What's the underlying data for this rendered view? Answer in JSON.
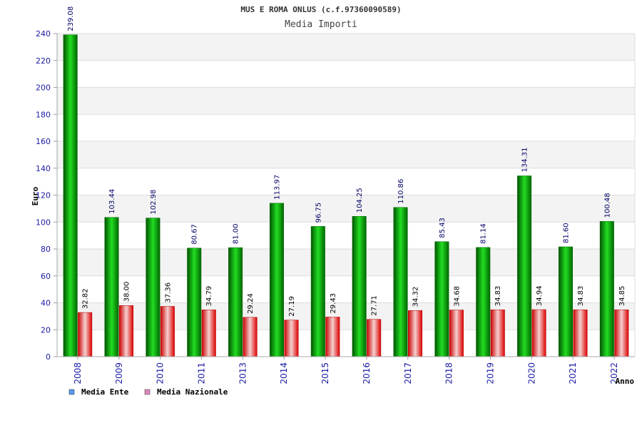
{
  "chart_data": {
    "type": "bar",
    "title": "MUS E ROMA ONLUS (c.f.97360090589)",
    "subtitle": "Media Importi",
    "xlabel": "Anno",
    "ylabel": "Euro",
    "ylim": [
      0,
      240
    ],
    "yticks": [
      0,
      20,
      40,
      60,
      80,
      100,
      120,
      140,
      160,
      180,
      200,
      220,
      240
    ],
    "categories": [
      "2008",
      "2009",
      "2010",
      "2011",
      "2013",
      "2014",
      "2015",
      "2016",
      "2017",
      "2018",
      "2019",
      "2020",
      "2021",
      "2022"
    ],
    "series": [
      {
        "name": "Media Ente",
        "legend_color": "#5599ee",
        "bar_color": "#00bb00",
        "values": [
          239.08,
          103.44,
          102.98,
          80.67,
          81.0,
          113.97,
          96.75,
          104.25,
          110.86,
          85.43,
          81.14,
          134.31,
          81.6,
          100.48
        ],
        "labels": [
          "239.08",
          "103.44",
          "102.98",
          "80.67",
          "81.00",
          "113.97",
          "96.75",
          "104.25",
          "110.86",
          "85.43",
          "81.14",
          "134.31",
          "81.60",
          "100.48"
        ]
      },
      {
        "name": "Media Nazionale",
        "legend_color": "#dd88bb",
        "bar_color": "#ee1122",
        "values": [
          32.82,
          38.0,
          37.36,
          34.79,
          29.24,
          27.19,
          29.43,
          27.71,
          34.32,
          34.68,
          34.83,
          34.94,
          34.83,
          34.85
        ],
        "labels": [
          "32.82",
          "38.00",
          "37.36",
          "34.79",
          "29.24",
          "27.19",
          "29.43",
          "27.71",
          "34.32",
          "34.68",
          "34.83",
          "34.94",
          "34.83",
          "34.85"
        ]
      }
    ],
    "grid": true,
    "legend_position": "bottom-left"
  }
}
